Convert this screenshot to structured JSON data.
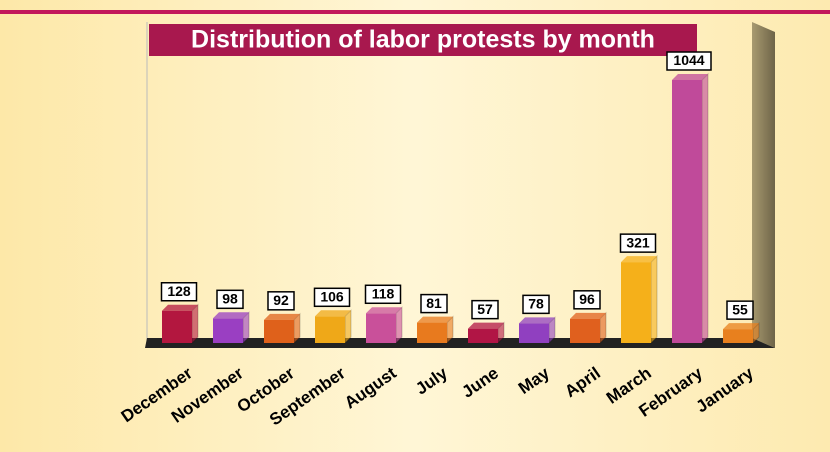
{
  "chart_data": {
    "type": "bar3d",
    "title": "Distribution of labor protests by month",
    "categories": [
      "December",
      "November",
      "October",
      "September",
      "August",
      "July",
      "June",
      "May",
      "April",
      "March",
      "February",
      "January"
    ],
    "values": [
      128,
      98,
      92,
      106,
      118,
      81,
      57,
      78,
      96,
      321,
      1044,
      55
    ],
    "colors": [
      "#b3173f",
      "#9a3fc2",
      "#df611b",
      "#efa818",
      "#c9509a",
      "#e87a1e",
      "#b11545",
      "#9040c0",
      "#e0601e",
      "#f5b01a",
      "#c04a9a",
      "#e8801e"
    ]
  }
}
